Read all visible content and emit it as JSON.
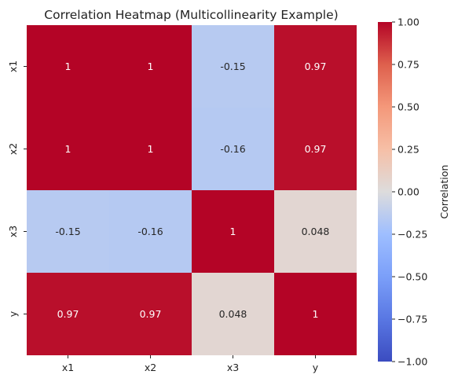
{
  "chart_data": {
    "type": "heatmap",
    "title": "Correlation Heatmap (Multicollinearity Example)",
    "row_labels": [
      "x1",
      "x2",
      "x3",
      "y"
    ],
    "col_labels": [
      "x1",
      "x2",
      "x3",
      "y"
    ],
    "values": [
      [
        1,
        1,
        -0.15,
        0.97
      ],
      [
        1,
        1,
        -0.16,
        0.97
      ],
      [
        -0.15,
        -0.16,
        1,
        0.048
      ],
      [
        0.97,
        0.97,
        0.048,
        1
      ]
    ],
    "cell_labels": [
      [
        "1",
        "1",
        "-0.15",
        "0.97"
      ],
      [
        "1",
        "1",
        "-0.16",
        "0.97"
      ],
      [
        "-0.15",
        "-0.16",
        "1",
        "0.048"
      ],
      [
        "0.97",
        "0.97",
        "0.048",
        "1"
      ]
    ],
    "colormap": "coolwarm",
    "colorbar": {
      "label": "Correlation",
      "range": [
        -1.0,
        1.0
      ],
      "ticks": [
        1.0,
        0.75,
        0.5,
        0.25,
        0.0,
        -0.25,
        -0.5,
        -0.75,
        -1.0
      ],
      "tick_labels": [
        "1.00",
        "0.75",
        "0.50",
        "0.25",
        "0.00",
        "−0.25",
        "−0.50",
        "−0.75",
        "−1.00"
      ]
    }
  }
}
